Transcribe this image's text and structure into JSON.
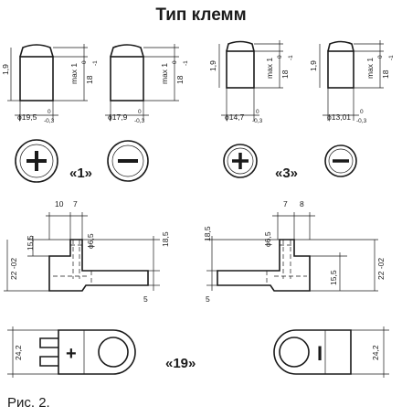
{
  "title": "Тип клемм",
  "caption": "Рис. 2.",
  "groups": {
    "g1": "«1»",
    "g3": "«3»",
    "g19": "«19»"
  },
  "terminals": [
    {
      "height": "1,9",
      "max": "max 1",
      "tol_top": "0",
      "tol_val": "18",
      "tol_bot": "-1",
      "dia_main": "ϕ19,5",
      "dia_up": "0",
      "dia_low": "-0,3",
      "polarity": "+"
    },
    {
      "height": "",
      "max": "max 1",
      "tol_top": "0",
      "tol_val": "18",
      "tol_bot": "-1",
      "dia_main": "ϕ17,9",
      "dia_up": "0",
      "dia_low": "-0,3",
      "polarity": "−"
    },
    {
      "height": "1,9",
      "max": "max 1",
      "tol_top": "0",
      "tol_val": "18",
      "tol_bot": "-1",
      "dia_main": "ϕ14,7",
      "dia_up": "0",
      "dia_low": "-0,3",
      "polarity": "+"
    },
    {
      "height": "1,9",
      "max": "max 1",
      "tol_top": "0",
      "tol_val": "18",
      "tol_bot": "-1",
      "dia_main": "ϕ13,01",
      "dia_up": "0",
      "dia_low": "-0,3",
      "polarity": "−"
    }
  ],
  "left_side": {
    "w1": "10",
    "w2": "7",
    "h1": "15,5",
    "h_body": "22 -02",
    "hole": "ϕ6,5",
    "h_right": "18,5",
    "h_base": "5"
  },
  "right_side": {
    "w1": "7",
    "w2": "8",
    "h_left": "18,5",
    "hole": "ϕ6,5",
    "h1": "15,5",
    "h_body": "22 -02",
    "h_base": "5"
  },
  "top_views": {
    "left_width": "24,2",
    "right_width": "24,2",
    "left_sign": "+",
    "right_sign": "I"
  }
}
